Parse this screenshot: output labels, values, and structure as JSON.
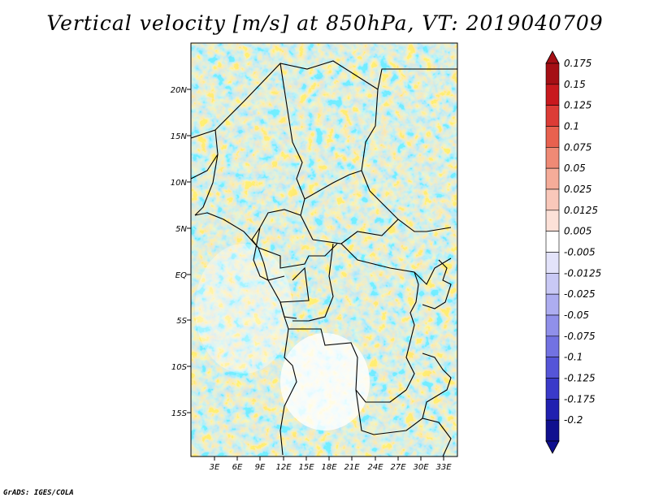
{
  "title": "Vertical velocity [m/s] at 850hPa, VT: 2019040709",
  "credit": "GrADS: IGES/COLA",
  "map": {
    "lat_labels": [
      "20N",
      "15N",
      "10N",
      "5N",
      "EQ",
      "5S",
      "10S",
      "15S"
    ],
    "lon_labels": [
      "3E",
      "6E",
      "9E",
      "12E",
      "15E",
      "18E",
      "21E",
      "24E",
      "27E",
      "30E",
      "33E"
    ]
  },
  "colorbar": {
    "labels": [
      "0.175",
      "0.15",
      "0.125",
      "0.1",
      "0.075",
      "0.05",
      "0.025",
      "0.0125",
      "0.005",
      "-0.005",
      "-0.0125",
      "-0.025",
      "-0.05",
      "-0.075",
      "-0.1",
      "-0.125",
      "-0.175",
      "-0.2"
    ],
    "colors": [
      "#a50f15",
      "#c8191e",
      "#dc3c36",
      "#e8614f",
      "#ef8a75",
      "#f5ac99",
      "#f9c8ba",
      "#fce1d8",
      "#ffffff",
      "#e3e3fa",
      "#c9c9f5",
      "#adadf0",
      "#9090ea",
      "#7272e2",
      "#5555d8",
      "#3a3ac9",
      "#2020b0",
      "#10108f"
    ]
  }
}
